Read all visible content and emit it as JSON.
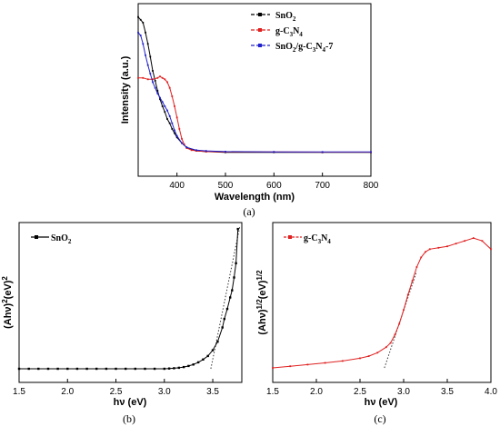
{
  "chart_data": [
    {
      "id": "a",
      "type": "line",
      "caption": "(a)",
      "xlabel": "Wavelength (nm)",
      "ylabel": "Intensity (a.u.)",
      "xlim": [
        320,
        800
      ],
      "ylim": [
        0,
        1
      ],
      "xticks": [
        400,
        500,
        600,
        700,
        800
      ],
      "legend_position": "top-right",
      "series": [
        {
          "name": "SnO",
          "name_sub": "2",
          "color": "#000000",
          "x": [
            320,
            325,
            330,
            335,
            340,
            345,
            350,
            355,
            360,
            365,
            370,
            375,
            380,
            385,
            390,
            395,
            400,
            410,
            420,
            440,
            460,
            500,
            600,
            700,
            800
          ],
          "y": [
            0.97,
            0.95,
            0.93,
            0.86,
            0.78,
            0.69,
            0.59,
            0.52,
            0.45,
            0.39,
            0.34,
            0.3,
            0.25,
            0.22,
            0.18,
            0.15,
            0.12,
            0.08,
            0.05,
            0.025,
            0.02,
            0.015,
            0.015,
            0.014,
            0.014
          ]
        },
        {
          "name": "g-C",
          "name_sub": "3",
          "name2": "N",
          "name2_sub": "4",
          "color": "#e02020",
          "x": [
            320,
            330,
            340,
            350,
            360,
            365,
            370,
            375,
            380,
            385,
            390,
            395,
            400,
            405,
            410,
            415,
            420,
            430,
            440,
            460,
            500,
            600,
            700,
            800
          ],
          "y": [
            0.54,
            0.54,
            0.53,
            0.53,
            0.54,
            0.55,
            0.54,
            0.53,
            0.51,
            0.47,
            0.41,
            0.34,
            0.26,
            0.18,
            0.11,
            0.07,
            0.045,
            0.03,
            0.025,
            0.02,
            0.018,
            0.017,
            0.016,
            0.016
          ]
        },
        {
          "name": "SnO",
          "name_sub": "2",
          "name2": "/g-C",
          "name2_sub": "3",
          "name3": "N",
          "name3_sub": "4",
          "name4": "-7",
          "color": "#2020cc",
          "x": [
            320,
            325,
            330,
            335,
            340,
            345,
            350,
            355,
            360,
            365,
            370,
            375,
            380,
            385,
            390,
            395,
            400,
            410,
            420,
            440,
            460,
            500,
            600,
            700,
            800
          ],
          "y": [
            0.86,
            0.84,
            0.78,
            0.7,
            0.63,
            0.57,
            0.51,
            0.47,
            0.43,
            0.4,
            0.37,
            0.34,
            0.31,
            0.27,
            0.22,
            0.17,
            0.13,
            0.08,
            0.05,
            0.03,
            0.025,
            0.02,
            0.018,
            0.017,
            0.017
          ]
        }
      ]
    },
    {
      "id": "b",
      "type": "line",
      "caption": "(b)",
      "xlabel": "hν (eV)",
      "ylabel": "(Ahν)",
      "ylabel_sup1": "2",
      "ylabel_mid": "(eV)",
      "ylabel_sup2": "2",
      "xlim": [
        1.5,
        3.8
      ],
      "ylim": [
        0,
        1
      ],
      "xticks": [
        1.5,
        2.0,
        2.5,
        3.0,
        3.5
      ],
      "xtick_labels": [
        "1.5",
        "2.0",
        "2.5",
        "3.0",
        "3.5"
      ],
      "legend_position": "top-left",
      "tangent": {
        "x": [
          3.48,
          3.78
        ],
        "y": [
          0.0,
          1.0
        ]
      },
      "series": [
        {
          "name": "SnO",
          "name_sub": "2",
          "color": "#000000",
          "x": [
            1.5,
            1.6,
            1.7,
            1.8,
            1.9,
            2.0,
            2.1,
            2.2,
            2.3,
            2.4,
            2.5,
            2.6,
            2.7,
            2.8,
            2.9,
            3.0,
            3.05,
            3.1,
            3.15,
            3.2,
            3.25,
            3.3,
            3.35,
            3.4,
            3.45,
            3.5,
            3.55,
            3.6,
            3.62,
            3.65,
            3.68,
            3.7,
            3.72,
            3.74,
            3.76
          ],
          "y": [
            0.0,
            0.0,
            0.0,
            0.0,
            0.0,
            0.0,
            0.0,
            0.0,
            0.0,
            0.0,
            0.0,
            0.0,
            0.0,
            0.0,
            0.0,
            0.0,
            0.002,
            0.004,
            0.007,
            0.012,
            0.02,
            0.03,
            0.045,
            0.065,
            0.09,
            0.13,
            0.19,
            0.29,
            0.35,
            0.42,
            0.5,
            0.55,
            0.64,
            0.74,
            0.98
          ]
        }
      ]
    },
    {
      "id": "c",
      "type": "line",
      "caption": "(c)",
      "xlabel": "hν (eV)",
      "ylabel": "(Ahν)",
      "ylabel_sup1": "1/2",
      "ylabel_mid": "(eV)",
      "ylabel_sup2": "1/2",
      "xlim": [
        1.5,
        4.0
      ],
      "ylim": [
        0,
        1
      ],
      "xticks": [
        1.5,
        2.0,
        2.5,
        3.0,
        3.5,
        4.0
      ],
      "xtick_labels": [
        "1.5",
        "2.0",
        "2.5",
        "3.0",
        "3.5",
        "4.0"
      ],
      "legend_position": "top-left",
      "tangent": {
        "x": [
          2.78,
          3.15
        ],
        "y": [
          0.0,
          0.7
        ]
      },
      "series": [
        {
          "name": "g-C",
          "name_sub": "3",
          "name2": "N",
          "name2_sub": "4",
          "color": "#e02020",
          "x": [
            1.5,
            1.7,
            1.9,
            2.1,
            2.3,
            2.5,
            2.6,
            2.7,
            2.8,
            2.85,
            2.9,
            2.95,
            3.0,
            3.05,
            3.1,
            3.15,
            3.2,
            3.25,
            3.3,
            3.4,
            3.5,
            3.6,
            3.7,
            3.8,
            3.9,
            4.0
          ],
          "y": [
            0.0,
            0.012,
            0.024,
            0.036,
            0.05,
            0.07,
            0.085,
            0.11,
            0.15,
            0.18,
            0.24,
            0.32,
            0.42,
            0.53,
            0.63,
            0.73,
            0.8,
            0.84,
            0.86,
            0.87,
            0.88,
            0.9,
            0.92,
            0.94,
            0.92,
            0.86
          ]
        }
      ]
    }
  ]
}
